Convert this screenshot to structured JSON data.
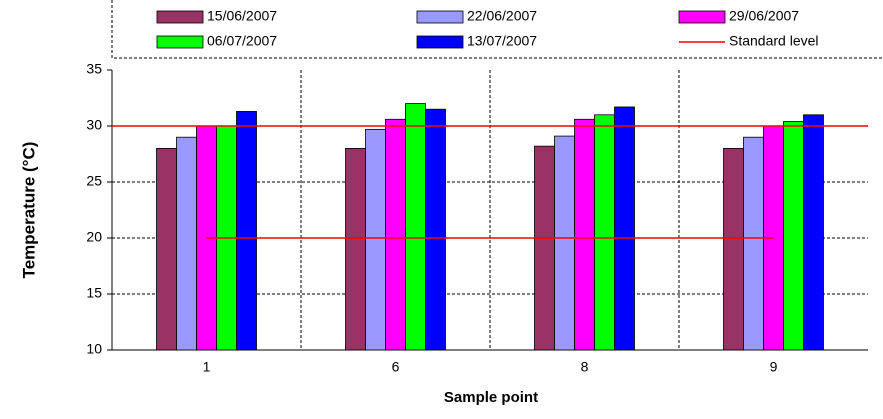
{
  "chart_data": {
    "type": "bar",
    "y_label": "Temperature (°C)",
    "x_label": "Sample point",
    "categories": [
      "1",
      "6",
      "8",
      "9"
    ],
    "series": [
      {
        "name": "15/06/2007",
        "color": "#993366",
        "values": [
          28,
          28,
          28.2,
          28
        ]
      },
      {
        "name": "22/06/2007",
        "color": "#9999ff",
        "values": [
          29,
          29.7,
          29.1,
          29
        ]
      },
      {
        "name": "29/06/2007",
        "color": "#ff00ff",
        "values": [
          30,
          30.6,
          30.6,
          30
        ]
      },
      {
        "name": "06/07/2007",
        "color": "#00ff00",
        "values": [
          30,
          32,
          31,
          30.4
        ]
      },
      {
        "name": "13/07/2007",
        "color": "#0000ff",
        "values": [
          31.3,
          31.5,
          31.7,
          31
        ]
      }
    ],
    "standard": {
      "name": "Standard level",
      "color": "#ff0000",
      "values": [
        20,
        20,
        20,
        20
      ],
      "upper": 30
    },
    "ylim": [
      10,
      35
    ],
    "yticks": [
      10,
      15,
      20,
      25,
      30,
      35
    ],
    "grid": true
  }
}
